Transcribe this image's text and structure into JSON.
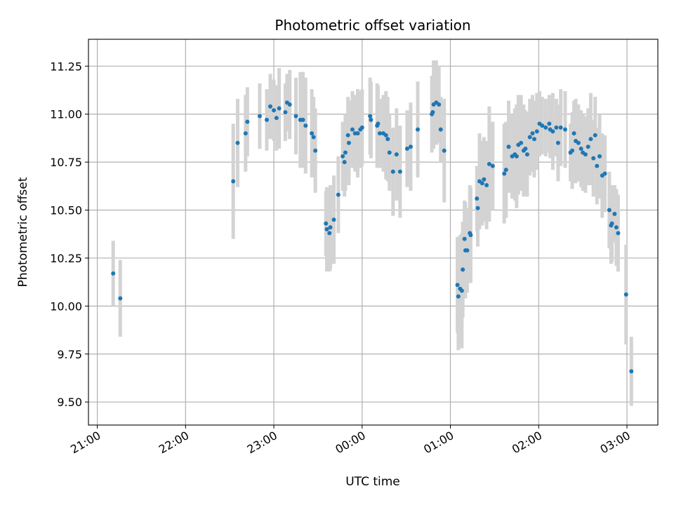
{
  "chart_data": {
    "type": "scatter",
    "title": "Photometric offset variation",
    "xlabel": "UTC time",
    "ylabel": "Photometric offset",
    "x_unit": "hours (UTC, 21:00 = 21, 03:00 next day = 27)",
    "xlim": [
      20.9,
      27.35
    ],
    "ylim": [
      9.38,
      11.39
    ],
    "x_ticks": [
      {
        "value": 21,
        "label": "21:00"
      },
      {
        "value": 22,
        "label": "22:00"
      },
      {
        "value": 23,
        "label": "23:00"
      },
      {
        "value": 24,
        "label": "00:00"
      },
      {
        "value": 25,
        "label": "01:00"
      },
      {
        "value": 26,
        "label": "02:00"
      },
      {
        "value": 27,
        "label": "03:00"
      }
    ],
    "y_ticks": [
      {
        "value": 9.5,
        "label": "9.50"
      },
      {
        "value": 9.75,
        "label": "9.75"
      },
      {
        "value": 10.0,
        "label": "10.00"
      },
      {
        "value": 10.25,
        "label": "10.25"
      },
      {
        "value": 10.5,
        "label": "10.50"
      },
      {
        "value": 10.75,
        "label": "10.75"
      },
      {
        "value": 11.0,
        "label": "11.00"
      },
      {
        "value": 11.25,
        "label": "11.25"
      }
    ],
    "grid": true,
    "colors": {
      "point": "#1f77b4",
      "errorbar": "#d3d3d3",
      "grid": "#b0b0b0"
    },
    "series": [
      {
        "points": [
          [
            21.18,
            10.17,
            0.17
          ],
          [
            21.26,
            10.04,
            0.2
          ],
          [
            22.54,
            10.65,
            0.3
          ],
          [
            22.59,
            10.85,
            0.23
          ],
          [
            22.68,
            10.9,
            0.2
          ],
          [
            22.7,
            10.96,
            0.18
          ],
          [
            22.84,
            10.99,
            0.17
          ],
          [
            22.92,
            10.97,
            0.16
          ],
          [
            22.96,
            11.04,
            0.17
          ],
          [
            23.0,
            11.02,
            0.16
          ],
          [
            23.03,
            10.98,
            0.17
          ],
          [
            23.06,
            11.03,
            0.21
          ],
          [
            23.13,
            11.01,
            0.15
          ],
          [
            23.15,
            11.06,
            0.15
          ],
          [
            23.18,
            11.05,
            0.18
          ],
          [
            23.25,
            10.99,
            0.2
          ],
          [
            23.3,
            10.97,
            0.25
          ],
          [
            23.33,
            10.97,
            0.25
          ],
          [
            23.36,
            10.94,
            0.25
          ],
          [
            23.43,
            10.9,
            0.23
          ],
          [
            23.45,
            10.88,
            0.21
          ],
          [
            23.47,
            10.81,
            0.22
          ],
          [
            23.59,
            10.43,
            0.17
          ],
          [
            23.6,
            10.4,
            0.22
          ],
          [
            23.63,
            10.38,
            0.2
          ],
          [
            23.64,
            10.41,
            0.22
          ],
          [
            23.68,
            10.45,
            0.23
          ],
          [
            23.73,
            10.58,
            0.2
          ],
          [
            23.78,
            10.78,
            0.18
          ],
          [
            23.8,
            10.75,
            0.18
          ],
          [
            23.81,
            10.8,
            0.2
          ],
          [
            23.84,
            10.89,
            0.2
          ],
          [
            23.85,
            10.85,
            0.22
          ],
          [
            23.89,
            10.92,
            0.2
          ],
          [
            23.92,
            10.9,
            0.2
          ],
          [
            23.95,
            10.9,
            0.23
          ],
          [
            23.98,
            10.92,
            0.2
          ],
          [
            24.0,
            10.93,
            0.2
          ],
          [
            24.09,
            10.99,
            0.2
          ],
          [
            24.1,
            10.97,
            0.2
          ],
          [
            24.17,
            10.94,
            0.22
          ],
          [
            24.18,
            10.95,
            0.2
          ],
          [
            24.2,
            10.9,
            0.18
          ],
          [
            24.24,
            10.9,
            0.2
          ],
          [
            24.27,
            10.89,
            0.23
          ],
          [
            24.29,
            10.87,
            0.22
          ],
          [
            24.31,
            10.8,
            0.2
          ],
          [
            24.35,
            10.7,
            0.23
          ],
          [
            24.39,
            10.79,
            0.24
          ],
          [
            24.43,
            10.7,
            0.24
          ],
          [
            24.51,
            10.82,
            0.2
          ],
          [
            24.55,
            10.83,
            0.23
          ],
          [
            24.63,
            10.92,
            0.25
          ],
          [
            24.79,
            11.0,
            0.2
          ],
          [
            24.8,
            11.01,
            0.17
          ],
          [
            24.81,
            11.05,
            0.23
          ],
          [
            24.84,
            11.06,
            0.22
          ],
          [
            24.87,
            11.05,
            0.2
          ],
          [
            24.89,
            10.92,
            0.17
          ],
          [
            24.93,
            10.81,
            0.27
          ],
          [
            25.08,
            10.11,
            0.25
          ],
          [
            25.09,
            10.05,
            0.28
          ],
          [
            25.11,
            10.09,
            0.28
          ],
          [
            25.13,
            10.08,
            0.3
          ],
          [
            25.14,
            10.19,
            0.25
          ],
          [
            25.16,
            10.35,
            0.2
          ],
          [
            25.17,
            10.29,
            0.25
          ],
          [
            25.19,
            10.29,
            0.22
          ],
          [
            25.22,
            10.38,
            0.25
          ],
          [
            25.23,
            10.37,
            0.25
          ],
          [
            25.3,
            10.56,
            0.17
          ],
          [
            25.31,
            10.51,
            0.2
          ],
          [
            25.33,
            10.65,
            0.25
          ],
          [
            25.36,
            10.64,
            0.22
          ],
          [
            25.38,
            10.66,
            0.22
          ],
          [
            25.41,
            10.63,
            0.23
          ],
          [
            25.44,
            10.74,
            0.3
          ],
          [
            25.48,
            10.73,
            0.23
          ],
          [
            25.61,
            10.69,
            0.26
          ],
          [
            25.63,
            10.71,
            0.25
          ],
          [
            25.66,
            10.83,
            0.24
          ],
          [
            25.7,
            10.78,
            0.22
          ],
          [
            25.73,
            10.79,
            0.24
          ],
          [
            25.75,
            10.78,
            0.27
          ],
          [
            25.77,
            10.84,
            0.26
          ],
          [
            25.8,
            10.85,
            0.25
          ],
          [
            25.83,
            10.81,
            0.24
          ],
          [
            25.85,
            10.82,
            0.2
          ],
          [
            25.87,
            10.79,
            0.22
          ],
          [
            25.9,
            10.88,
            0.2
          ],
          [
            25.93,
            10.9,
            0.2
          ],
          [
            25.95,
            10.87,
            0.2
          ],
          [
            25.98,
            10.91,
            0.2
          ],
          [
            26.01,
            10.95,
            0.17
          ],
          [
            26.04,
            10.94,
            0.15
          ],
          [
            26.08,
            10.93,
            0.15
          ],
          [
            26.12,
            10.95,
            0.15
          ],
          [
            26.13,
            10.92,
            0.15
          ],
          [
            26.16,
            10.91,
            0.2
          ],
          [
            26.2,
            10.93,
            0.15
          ],
          [
            26.22,
            10.85,
            0.2
          ],
          [
            26.25,
            10.93,
            0.2
          ],
          [
            26.3,
            10.92,
            0.2
          ],
          [
            26.36,
            10.8,
            0.15
          ],
          [
            26.38,
            10.81,
            0.2
          ],
          [
            26.4,
            10.9,
            0.17
          ],
          [
            26.42,
            10.86,
            0.22
          ],
          [
            26.45,
            10.85,
            0.2
          ],
          [
            26.48,
            10.82,
            0.2
          ],
          [
            26.5,
            10.8,
            0.2
          ],
          [
            26.53,
            10.79,
            0.2
          ],
          [
            26.56,
            10.83,
            0.2
          ],
          [
            26.59,
            10.87,
            0.24
          ],
          [
            26.62,
            10.77,
            0.2
          ],
          [
            26.64,
            10.89,
            0.2
          ],
          [
            26.66,
            10.73,
            0.2
          ],
          [
            26.69,
            10.78,
            0.22
          ],
          [
            26.72,
            10.68,
            0.22
          ],
          [
            26.75,
            10.69,
            0.2
          ],
          [
            26.8,
            10.5,
            0.2
          ],
          [
            26.82,
            10.42,
            0.2
          ],
          [
            26.83,
            10.43,
            0.2
          ],
          [
            26.86,
            10.48,
            0.15
          ],
          [
            26.88,
            10.41,
            0.2
          ],
          [
            26.9,
            10.38,
            0.2
          ],
          [
            26.99,
            10.06,
            0.26
          ],
          [
            27.05,
            9.66,
            0.18
          ]
        ]
      }
    ]
  }
}
